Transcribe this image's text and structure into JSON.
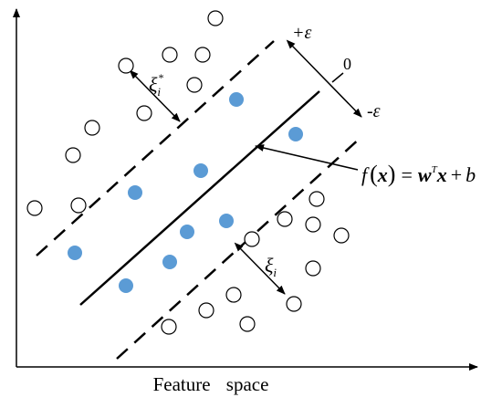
{
  "labels": {
    "plus_epsilon": "+ε",
    "zero": "0",
    "minus_epsilon": "-ε",
    "xi_star": {
      "symbol": "ξ",
      "sub": "i",
      "sup": "*"
    },
    "xi": {
      "symbol": "ξ",
      "sub": "i"
    },
    "formula": [
      "f",
      "(",
      "x",
      ")",
      "=",
      "w",
      "T",
      "x",
      "+",
      "b"
    ],
    "x_axis": "Feature space"
  }
}
